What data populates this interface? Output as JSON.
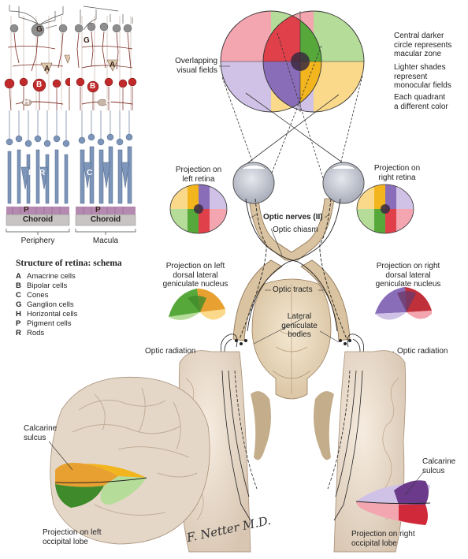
{
  "visual_fields": {
    "overlapping_label": [
      "Overlapping",
      "visual fields"
    ],
    "note_macular": [
      "Central darker",
      "circle represents",
      "macular zone"
    ],
    "note_lighter": [
      "Lighter shades",
      "represent",
      "monocular fields"
    ],
    "note_quadrant": [
      "Each quadrant",
      "a different color"
    ],
    "colors": {
      "red": "#e0404a",
      "green": "#56a83a",
      "purple": "#8a6db8",
      "yellow": "#f2b51e",
      "light_red": "#f3a6b0",
      "light_green": "#b5dc98",
      "light_purple": "#cfc2e6",
      "light_yellow": "#fbd98a"
    }
  },
  "retina": {
    "periphery_label": "Periphery",
    "macula_label": "Macula",
    "choroid_label": "Choroid",
    "cell_letters": {
      "G": "G",
      "A": "A",
      "B": "B",
      "H": "H",
      "R": "R",
      "C": "C",
      "P": "P"
    },
    "legend_title": "Structure of retina: schema",
    "legend": [
      {
        "key": "A",
        "text": "Amacrine cells"
      },
      {
        "key": "B",
        "text": "Bipolar cells"
      },
      {
        "key": "C",
        "text": "Cones"
      },
      {
        "key": "G",
        "text": "Ganglion cells"
      },
      {
        "key": "H",
        "text": "Horizontal cells"
      },
      {
        "key": "P",
        "text": "Pigment cells"
      },
      {
        "key": "R",
        "text": "Rods"
      }
    ]
  },
  "pathway": {
    "proj_left_retina": [
      "Projection on",
      "left retina"
    ],
    "proj_right_retina": [
      "Projection on",
      "right retina"
    ],
    "optic_nerves": "Optic nerves (II)",
    "optic_chiasm": "Optic chiasm",
    "proj_left_lgn": [
      "Projection on left",
      "dorsal lateral",
      "geniculate nucleus"
    ],
    "proj_right_lgn": [
      "Projection on right",
      "dorsal lateral",
      "geniculate nucleus"
    ],
    "optic_tracts": "Optic tracts",
    "lgb": [
      "Lateral",
      "geniculate",
      "bodies"
    ],
    "optic_radiation_left": "Optic radiation",
    "optic_radiation_right": "Optic radiation",
    "calcarine_left": [
      "Calcarine",
      "sulcus"
    ],
    "calcarine_right": [
      "Calcarine",
      "sulcus"
    ],
    "proj_left_occipital": [
      "Projection on left",
      "occipital lobe"
    ],
    "proj_right_occipital": [
      "Projection on right",
      "occipital lobe"
    ]
  },
  "signature": "F. Netter M.D."
}
